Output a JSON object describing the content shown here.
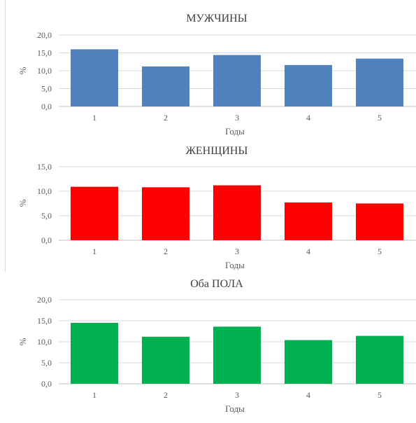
{
  "chart_data": [
    {
      "type": "bar",
      "title": "МУЖЧИНЫ",
      "xlabel": "Годы",
      "ylabel": "%",
      "categories": [
        "1",
        "2",
        "3",
        "4",
        "5"
      ],
      "values": [
        16.0,
        11.2,
        14.4,
        11.6,
        13.4
      ],
      "ylim": [
        0,
        20
      ],
      "yticks": [
        "0,0",
        "5,0",
        "10,0",
        "15,0",
        "20,0"
      ],
      "color": "#4f81bd",
      "grid": true,
      "legend": "none"
    },
    {
      "type": "bar",
      "title": "ЖЕНЩИНЫ",
      "xlabel": "Годы",
      "ylabel": "%",
      "categories": [
        "1",
        "2",
        "3",
        "4",
        "5"
      ],
      "values": [
        10.9,
        10.8,
        11.2,
        7.7,
        7.5
      ],
      "ylim": [
        0,
        15
      ],
      "yticks": [
        "0,0",
        "5,0",
        "10,0",
        "15,0"
      ],
      "color": "#ff0000",
      "grid": true,
      "legend": "none"
    },
    {
      "type": "bar",
      "title": "Оба ПОЛА",
      "xlabel": "Годы",
      "ylabel": "%",
      "categories": [
        "1",
        "2",
        "3",
        "4",
        "5"
      ],
      "values": [
        14.5,
        11.2,
        13.6,
        10.4,
        11.4
      ],
      "ylim": [
        0,
        20
      ],
      "yticks": [
        "0,0",
        "5,0",
        "10,0",
        "15,0",
        "20,0"
      ],
      "color": "#00b050",
      "grid": true,
      "legend": "none"
    }
  ]
}
